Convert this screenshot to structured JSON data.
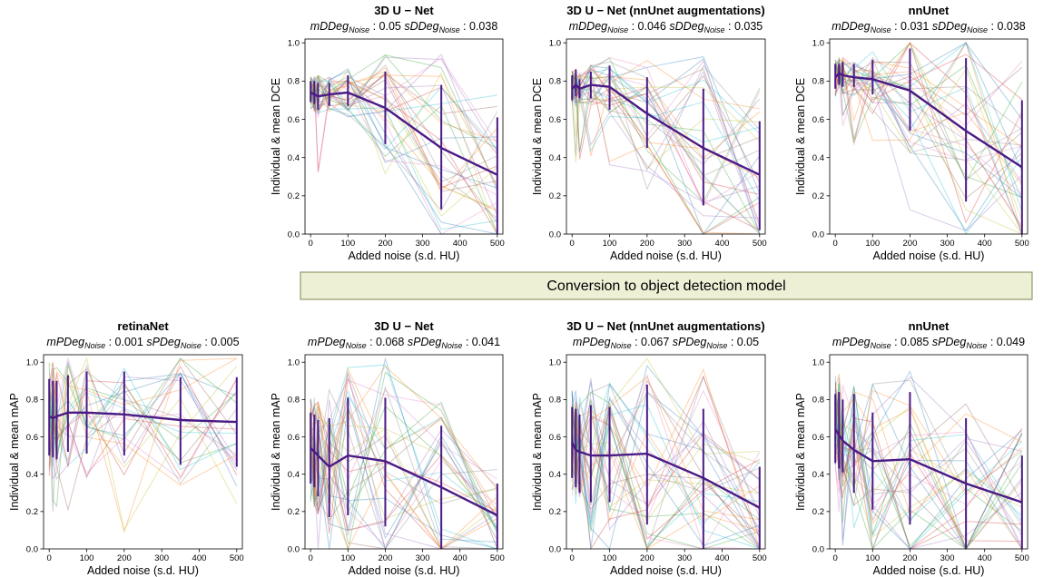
{
  "figure": {
    "banner": {
      "text": "Conversion to object detection model",
      "fill": "#eef0d6",
      "stroke": "#7f8550"
    },
    "colors": {
      "mean": "#4b1a85",
      "individual": [
        "#1f77b4",
        "#ff7f0e",
        "#2ca02c",
        "#d62728",
        "#9467bd",
        "#8c564b",
        "#e377c2",
        "#7f7f7f",
        "#bcbd22",
        "#17becf"
      ]
    }
  },
  "chart_data": [
    {
      "type": "line",
      "id": "dce-3dunet",
      "title": "3D U − Net",
      "metric": {
        "m_label": "mDDeg",
        "s_label": "sDDeg",
        "sub": "Noise",
        "m_value": "0.05",
        "s_value": "0.038"
      },
      "xlabel": "Added noise (s.d. HU)",
      "ylabel": "Individual & mean DCE",
      "xlim": [
        -15,
        515
      ],
      "ylim": [
        0,
        1.02
      ],
      "xticks": [
        "0",
        "100",
        "200",
        "300",
        "400",
        "500"
      ],
      "yticks": [
        "0.0",
        "0.2",
        "0.4",
        "0.6",
        "0.8",
        "1.0"
      ],
      "x": [
        0,
        10,
        20,
        50,
        100,
        200,
        350,
        500
      ],
      "mean": [
        0.74,
        0.73,
        0.72,
        0.73,
        0.74,
        0.66,
        0.45,
        0.31
      ],
      "err_low": [
        0.69,
        0.68,
        0.65,
        0.67,
        0.67,
        0.47,
        0.13,
        0.0
      ],
      "err_high": [
        0.8,
        0.8,
        0.79,
        0.79,
        0.83,
        0.85,
        0.78,
        0.61
      ],
      "individual_count": 32
    },
    {
      "type": "line",
      "id": "dce-3dunet-aug",
      "title": "3D U − Net (nnUnet augmentations)",
      "metric": {
        "m_label": "mDDeg",
        "s_label": "sDDeg",
        "sub": "Noise",
        "m_value": "0.046",
        "s_value": "0.035"
      },
      "xlabel": "Added noise (s.d. HU)",
      "ylabel": "Individual & mean DCE",
      "xlim": [
        -15,
        515
      ],
      "ylim": [
        0,
        1.02
      ],
      "xticks": [
        "0",
        "100",
        "200",
        "300",
        "400",
        "500"
      ],
      "yticks": [
        "0.0",
        "0.2",
        "0.4",
        "0.6",
        "0.8",
        "1.0"
      ],
      "x": [
        0,
        10,
        20,
        50,
        100,
        200,
        350,
        500
      ],
      "mean": [
        0.76,
        0.78,
        0.76,
        0.78,
        0.77,
        0.63,
        0.45,
        0.31
      ],
      "err_low": [
        0.7,
        0.72,
        0.71,
        0.71,
        0.65,
        0.45,
        0.15,
        0.02
      ],
      "err_high": [
        0.83,
        0.86,
        0.81,
        0.85,
        0.88,
        0.82,
        0.76,
        0.59
      ],
      "individual_count": 32
    },
    {
      "type": "line",
      "id": "dce-nnunet",
      "title": "nnUnet",
      "metric": {
        "m_label": "mDDeg",
        "s_label": "sDDeg",
        "sub": "Noise",
        "m_value": "0.031",
        "s_value": "0.038"
      },
      "xlabel": "Added noise (s.d. HU)",
      "ylabel": "Individual & mean DCE",
      "xlim": [
        -15,
        515
      ],
      "ylim": [
        0,
        1.02
      ],
      "xticks": [
        "0",
        "100",
        "200",
        "300",
        "400",
        "500"
      ],
      "yticks": [
        "0.0",
        "0.2",
        "0.4",
        "0.6",
        "0.8",
        "1.0"
      ],
      "x": [
        0,
        10,
        20,
        50,
        100,
        200,
        350,
        500
      ],
      "mean": [
        0.82,
        0.84,
        0.83,
        0.82,
        0.81,
        0.75,
        0.54,
        0.35
      ],
      "err_low": [
        0.76,
        0.78,
        0.77,
        0.77,
        0.73,
        0.54,
        0.17,
        0.0
      ],
      "err_high": [
        0.89,
        0.89,
        0.9,
        0.89,
        0.91,
        0.97,
        0.92,
        0.7
      ],
      "individual_count": 32
    },
    {
      "type": "line",
      "id": "map-retinanet",
      "title": "retinaNet",
      "metric": {
        "m_label": "mPDeg",
        "s_label": "sPDeg",
        "sub": "Noise",
        "m_value": " 0.001",
        "s_value": "0.005"
      },
      "xlabel": "Added noise (s.d. HU)",
      "ylabel": "Individual & mean mAP",
      "xlim": [
        -15,
        515
      ],
      "ylim": [
        0,
        1.04
      ],
      "xticks": [
        "0",
        "100",
        "200",
        "300",
        "400",
        "500"
      ],
      "yticks": [
        "0.0",
        "0.2",
        "0.4",
        "0.6",
        "0.8",
        "1.0"
      ],
      "x": [
        0,
        10,
        20,
        50,
        100,
        200,
        350,
        500
      ],
      "mean": [
        0.71,
        0.7,
        0.71,
        0.73,
        0.73,
        0.72,
        0.69,
        0.68
      ],
      "err_low": [
        0.5,
        0.49,
        0.48,
        0.52,
        0.51,
        0.5,
        0.45,
        0.44
      ],
      "err_high": [
        0.91,
        0.9,
        0.9,
        0.93,
        0.95,
        0.95,
        0.92,
        0.92
      ],
      "individual_count": 24
    },
    {
      "type": "line",
      "id": "map-3dunet",
      "title": "3D U − Net",
      "metric": {
        "m_label": "mPDeg",
        "s_label": "sPDeg",
        "sub": "Noise",
        "m_value": "0.068",
        "s_value": "0.041"
      },
      "xlabel": "Added noise (s.d. HU)",
      "ylabel": "Individual & mean mAP",
      "xlim": [
        -15,
        515
      ],
      "ylim": [
        0,
        1.04
      ],
      "xticks": [
        "0",
        "100",
        "200",
        "300",
        "400",
        "500"
      ],
      "yticks": [
        "0.0",
        "0.2",
        "0.4",
        "0.6",
        "0.8",
        "1.0"
      ],
      "x": [
        0,
        10,
        20,
        50,
        100,
        200,
        350,
        500
      ],
      "mean": [
        0.54,
        0.52,
        0.5,
        0.44,
        0.5,
        0.47,
        0.33,
        0.18
      ],
      "err_low": [
        0.35,
        0.33,
        0.28,
        0.17,
        0.18,
        0.12,
        0.0,
        0.0
      ],
      "err_high": [
        0.73,
        0.72,
        0.69,
        0.7,
        0.81,
        0.81,
        0.66,
        0.35
      ],
      "individual_count": 32
    },
    {
      "type": "line",
      "id": "map-3dunet-aug",
      "title": "3D U − Net (nnUnet augmentations)",
      "metric": {
        "m_label": "mPDeg",
        "s_label": "sPDeg",
        "sub": "Noise",
        "m_value": "0.067",
        "s_value": "0.05"
      },
      "xlabel": "Added noise (s.d. HU)",
      "ylabel": "Individual & mean mAP",
      "xlim": [
        -15,
        515
      ],
      "ylim": [
        0,
        1.04
      ],
      "xticks": [
        "0",
        "100",
        "200",
        "300",
        "400",
        "500"
      ],
      "yticks": [
        "0.0",
        "0.2",
        "0.4",
        "0.6",
        "0.8",
        "1.0"
      ],
      "x": [
        0,
        10,
        20,
        50,
        100,
        200,
        350,
        500
      ],
      "mean": [
        0.57,
        0.53,
        0.52,
        0.5,
        0.5,
        0.51,
        0.38,
        0.22
      ],
      "err_low": [
        0.38,
        0.33,
        0.3,
        0.25,
        0.25,
        0.13,
        0.0,
        0.0
      ],
      "err_high": [
        0.76,
        0.75,
        0.72,
        0.77,
        0.76,
        0.88,
        0.75,
        0.44
      ],
      "individual_count": 32
    },
    {
      "type": "line",
      "id": "map-nnunet",
      "title": "nnUnet",
      "metric": {
        "m_label": "mPDeg",
        "s_label": "sPDeg",
        "sub": "Noise",
        "m_value": "0.085",
        "s_value": "0.049"
      },
      "xlabel": "Added noise (s.d. HU)",
      "ylabel": "Individual & mean mAP",
      "xlim": [
        -15,
        515
      ],
      "ylim": [
        0,
        1.04
      ],
      "xticks": [
        "0",
        "100",
        "200",
        "300",
        "400",
        "500"
      ],
      "yticks": [
        "0.0",
        "0.2",
        "0.4",
        "0.6",
        "0.8",
        "1.0"
      ],
      "x": [
        0,
        10,
        20,
        50,
        100,
        200,
        350,
        500
      ],
      "mean": [
        0.64,
        0.61,
        0.58,
        0.53,
        0.47,
        0.48,
        0.35,
        0.25
      ],
      "err_low": [
        0.46,
        0.43,
        0.41,
        0.3,
        0.21,
        0.13,
        0.0,
        0.0
      ],
      "err_high": [
        0.83,
        0.84,
        0.8,
        0.83,
        0.73,
        0.84,
        0.7,
        0.5
      ],
      "individual_count": 32
    }
  ]
}
